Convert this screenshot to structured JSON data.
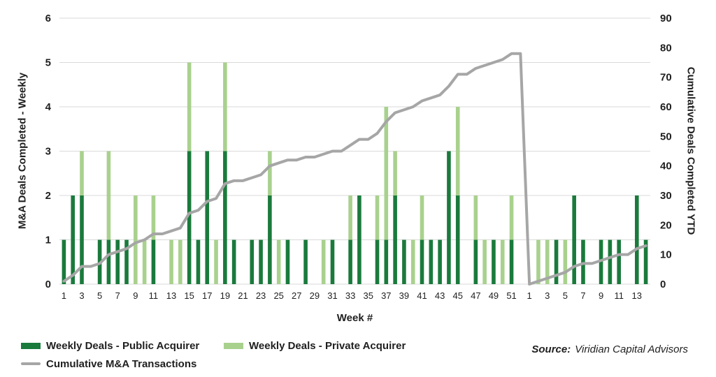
{
  "source": {
    "prefix": "Source:",
    "text": "Viridian Capital Advisors"
  },
  "colors": {
    "public_bar": "#1a7a3c",
    "private_bar": "#a9d18e",
    "cumulative_line": "#a6a6a6",
    "gridline": "#d9d9d9",
    "text": "#1f1f1f"
  },
  "chart_data": {
    "type": "bar",
    "subtype": "stacked-bars-with-cumulative-line",
    "title": "",
    "xlabel": "Week #",
    "left_axis": {
      "label": "M&A Deals Completed - Weekly",
      "min": 0,
      "max": 6,
      "ticks": [
        0,
        1,
        2,
        3,
        4,
        5,
        6
      ]
    },
    "right_axis": {
      "label": "Cumulative Deals Completed YTD",
      "min": 0,
      "max": 90,
      "ticks": [
        0,
        10,
        20,
        30,
        40,
        50,
        60,
        70,
        80,
        90
      ]
    },
    "grid": "horizontal",
    "legend_position": "bottom-left",
    "x_tick_rule": "odd week numbers only",
    "categories": [
      1,
      2,
      3,
      4,
      5,
      6,
      7,
      8,
      9,
      10,
      11,
      12,
      13,
      14,
      15,
      16,
      17,
      18,
      19,
      20,
      21,
      22,
      23,
      24,
      25,
      26,
      27,
      28,
      29,
      30,
      31,
      32,
      33,
      34,
      35,
      36,
      37,
      38,
      39,
      40,
      41,
      42,
      43,
      44,
      45,
      46,
      47,
      48,
      49,
      50,
      51,
      52,
      1,
      2,
      3,
      4,
      5,
      6,
      7,
      8,
      9,
      10,
      11,
      12,
      13,
      14
    ],
    "series": [
      {
        "name": "Weekly Deals - Public Acquirer",
        "type": "bar",
        "axis": "left",
        "color": "#1a7a3c",
        "values": [
          1,
          2,
          2,
          0,
          1,
          1,
          1,
          1,
          0,
          0,
          1,
          0,
          0,
          0,
          3,
          1,
          3,
          0,
          3,
          1,
          0,
          1,
          1,
          2,
          0,
          1,
          0,
          1,
          0,
          0,
          1,
          0,
          1,
          2,
          0,
          1,
          1,
          2,
          1,
          0,
          1,
          1,
          1,
          3,
          2,
          0,
          1,
          0,
          1,
          0,
          1,
          0,
          0,
          0,
          0,
          1,
          0,
          2,
          1,
          0,
          1,
          1,
          1,
          0,
          2,
          1
        ]
      },
      {
        "name": "Weekly Deals - Private Acquirer",
        "type": "bar",
        "axis": "left",
        "color": "#a9d18e",
        "values": [
          0,
          0,
          1,
          0,
          0,
          2,
          0,
          0,
          2,
          1,
          1,
          0,
          1,
          1,
          2,
          0,
          0,
          1,
          2,
          0,
          0,
          0,
          0,
          1,
          1,
          0,
          0,
          0,
          0,
          1,
          0,
          0,
          1,
          0,
          0,
          1,
          3,
          1,
          0,
          1,
          1,
          0,
          0,
          0,
          2,
          0,
          1,
          1,
          0,
          1,
          1,
          0,
          0,
          1,
          1,
          0,
          1,
          0,
          0,
          0,
          0,
          0,
          0,
          0,
          0,
          0
        ]
      },
      {
        "name": "Cumulative M&A Transactions",
        "type": "line",
        "axis": "right",
        "color": "#a6a6a6",
        "values": [
          1,
          3,
          6,
          6,
          7,
          10,
          11,
          12,
          14,
          15,
          17,
          17,
          18,
          19,
          24,
          25,
          28,
          29,
          34,
          35,
          35,
          36,
          37,
          40,
          41,
          42,
          42,
          43,
          43,
          44,
          45,
          45,
          47,
          49,
          49,
          51,
          55,
          58,
          59,
          60,
          62,
          63,
          64,
          67,
          71,
          71,
          73,
          74,
          75,
          76,
          78,
          78,
          0,
          1,
          2,
          3,
          4,
          6,
          7,
          7,
          8,
          9,
          10,
          10,
          12,
          13
        ]
      }
    ]
  }
}
